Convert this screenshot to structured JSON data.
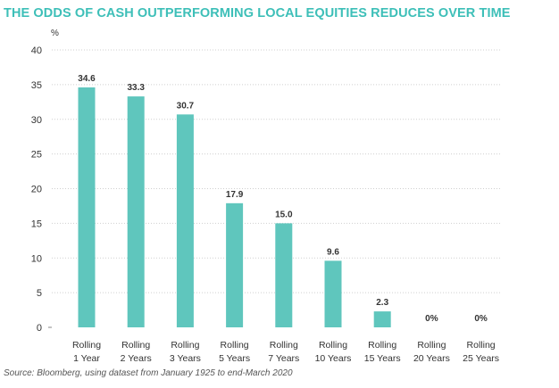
{
  "colors": {
    "title": "#3dbfb8",
    "bar": "#5fc6bd",
    "axis_text": "#333333",
    "grid": "#cfcfcf"
  },
  "chart_data": {
    "type": "bar",
    "title": "THE ODDS OF CASH OUTPERFORMING LOCAL EQUITIES REDUCES OVER TIME",
    "ylabel": "%",
    "xlabel": "",
    "ylim": [
      0,
      40
    ],
    "yticks": [
      0,
      5,
      10,
      15,
      20,
      25,
      30,
      35,
      40
    ],
    "grid": true,
    "grid_style": "dotted horizontal",
    "categories": [
      [
        "Rolling",
        "1 Year"
      ],
      [
        "Rolling",
        "2 Years"
      ],
      [
        "Rolling",
        "3 Years"
      ],
      [
        "Rolling",
        "5 Years"
      ],
      [
        "Rolling",
        "7 Years"
      ],
      [
        "Rolling",
        "10 Years"
      ],
      [
        "Rolling",
        "15 Years"
      ],
      [
        "Rolling",
        "20 Years"
      ],
      [
        "Rolling",
        "25 Years"
      ]
    ],
    "values": [
      34.6,
      33.3,
      30.7,
      17.9,
      15.0,
      9.6,
      2.3,
      0,
      0
    ],
    "data_labels": [
      "34.6",
      "33.3",
      "30.7",
      "17.9",
      "15.0",
      "9.6",
      "2.3",
      "0%",
      "0%"
    ]
  },
  "source": "Source: Bloomberg, using dataset from January 1925 to end-March 2020"
}
